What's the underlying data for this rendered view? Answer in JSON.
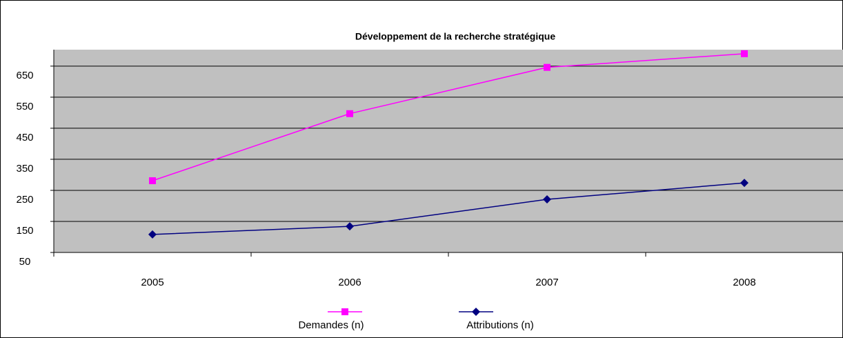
{
  "chart_data": {
    "type": "line",
    "title": "Développement de la recherche stratégique",
    "categories": [
      "2005",
      "2006",
      "2007",
      "2008"
    ],
    "series": [
      {
        "name": "Demandes (n)",
        "color": "#ff00ff",
        "marker": "square",
        "values": [
          281,
          497,
          646,
          690
        ]
      },
      {
        "name": "Attributions (n)",
        "color": "#000080",
        "marker": "diamond",
        "values": [
          108,
          134,
          221,
          274
        ]
      }
    ],
    "ylim": [
      50,
      703
    ],
    "yticks": [
      50,
      150,
      250,
      350,
      450,
      550,
      650
    ],
    "grid": true,
    "legend": "bottom"
  }
}
